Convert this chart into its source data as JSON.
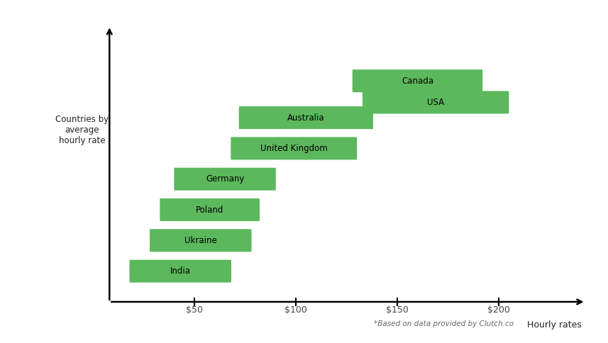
{
  "countries": [
    "India",
    "Ukraine",
    "Poland",
    "Germany",
    "United Kingdom",
    "Australia",
    "Canada",
    "USA"
  ],
  "bar_starts": [
    18,
    28,
    33,
    40,
    68,
    72,
    128,
    133
  ],
  "bar_ends": [
    68,
    78,
    82,
    90,
    130,
    138,
    192,
    205
  ],
  "y_positions": [
    1,
    2,
    3,
    4,
    5,
    6,
    7.2,
    6.5
  ],
  "bar_color": "#5cb85c",
  "bar_height": 0.5,
  "xlabel": "Hourly rates",
  "ylabel": "Countries by\naverage\nhourly rate",
  "xticks": [
    50,
    100,
    150,
    200
  ],
  "xlim": [
    5,
    245
  ],
  "ylim": [
    0,
    9.5
  ],
  "footnote": "*Based on data provided by Clutch.co",
  "background_color": "#ffffff",
  "ylabel_x_fig": 0.135,
  "ylabel_y_fig": 0.62
}
